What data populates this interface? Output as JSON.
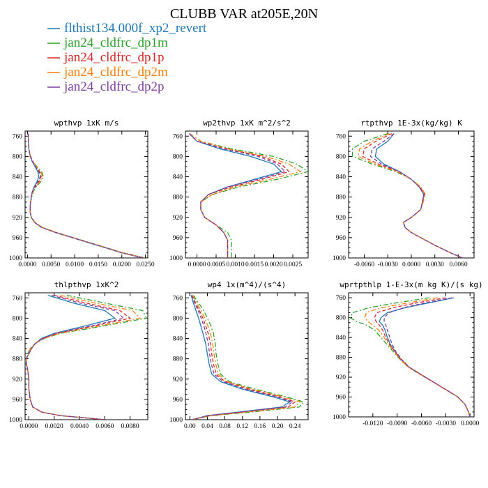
{
  "figure": {
    "title": "CLUBB VAR at205E,20N",
    "legend": [
      {
        "label": "flthist134.000f_xp2_revert",
        "color": "#1f77b4",
        "dash": "solid"
      },
      {
        "label": "jan24_cldfrc_dp1m",
        "color": "#2ca02c",
        "dash": "dashdot"
      },
      {
        "label": "jan24_cldfrc_dp1p",
        "color": "#d62728",
        "dash": "dashed"
      },
      {
        "label": "jan24_cldfrc_dp2m",
        "color": "#ff7f0e",
        "dash": "dashdot"
      },
      {
        "label": "jan24_cldfrc_dp2p",
        "color": "#7b3fa0",
        "dash": "dashed"
      }
    ]
  },
  "chart_data": [
    {
      "type": "line",
      "title": "wpthvp  1xK m/s",
      "ylim": [
        1000,
        750
      ],
      "yticks": [
        760,
        800,
        840,
        880,
        920,
        960,
        1000
      ],
      "xlim": [
        -0.0005,
        0.0255
      ],
      "xticks": [
        0.0,
        0.005,
        0.01,
        0.015,
        0.02,
        0.025
      ],
      "xticklabels": [
        "0.0000",
        "0.0050",
        "0.0100",
        "0.0150",
        "0.0200",
        "0.0250"
      ],
      "y": [
        755,
        770,
        785,
        800,
        810,
        820,
        830,
        840,
        850,
        860,
        870,
        880,
        895,
        910,
        920,
        930,
        940,
        950,
        960,
        970,
        980,
        990,
        1000
      ],
      "series": [
        {
          "values": [
            0.0002,
            0.0002,
            0.0003,
            0.0006,
            0.001,
            0.0016,
            0.0022,
            0.0024,
            0.002,
            0.0014,
            0.001,
            0.0008,
            0.0006,
            0.0006,
            0.0008,
            0.0015,
            0.003,
            0.006,
            0.0095,
            0.013,
            0.0165,
            0.02,
            0.0245
          ]
        },
        {
          "values": [
            0.0002,
            0.0002,
            0.0003,
            0.0007,
            0.0012,
            0.002,
            0.003,
            0.0034,
            0.0028,
            0.0018,
            0.0012,
            0.0009,
            0.0006,
            0.0006,
            0.0008,
            0.0016,
            0.0032,
            0.0062,
            0.0097,
            0.0133,
            0.0168,
            0.0203,
            0.025
          ]
        },
        {
          "values": [
            0.0002,
            0.0002,
            0.0003,
            0.0006,
            0.0011,
            0.0018,
            0.0026,
            0.0029,
            0.0024,
            0.0016,
            0.0011,
            0.0008,
            0.0006,
            0.0006,
            0.0008,
            0.0015,
            0.0031,
            0.0061,
            0.0096,
            0.0131,
            0.0166,
            0.0201,
            0.0247
          ]
        },
        {
          "values": [
            0.0002,
            0.0002,
            0.0003,
            0.0007,
            0.0012,
            0.0019,
            0.0028,
            0.0032,
            0.0026,
            0.0017,
            0.0011,
            0.0008,
            0.0006,
            0.0006,
            0.0008,
            0.0016,
            0.0031,
            0.0061,
            0.0096,
            0.0132,
            0.0167,
            0.0202,
            0.0248
          ]
        },
        {
          "values": [
            0.0002,
            0.0002,
            0.0003,
            0.0006,
            0.0011,
            0.0017,
            0.0024,
            0.0027,
            0.0022,
            0.0015,
            0.001,
            0.0008,
            0.0006,
            0.0006,
            0.0008,
            0.0015,
            0.003,
            0.006,
            0.0095,
            0.0131,
            0.0166,
            0.0201,
            0.0246
          ]
        }
      ]
    },
    {
      "type": "line",
      "title": "wp2thvp  1xK m^2/s^2",
      "ylim": [
        1000,
        750
      ],
      "yticks": [
        760,
        800,
        840,
        880,
        920,
        960,
        1000
      ],
      "xlim": [
        -0.0003,
        0.0029
      ],
      "xticks": [
        0.0,
        0.0005,
        0.001,
        0.0015,
        0.002,
        0.0025
      ],
      "xticklabels": [
        "0.0000",
        "0.0005",
        "0.0010",
        "0.0015",
        "0.0020",
        "0.0025"
      ],
      "y": [
        755,
        770,
        785,
        800,
        815,
        830,
        845,
        860,
        875,
        890,
        905,
        920,
        935,
        950,
        965,
        980,
        1000
      ],
      "series": [
        {
          "values": [
            -0.0002,
            0.0,
            0.0006,
            0.0014,
            0.002,
            0.0022,
            0.0015,
            0.0008,
            0.0003,
            0.0001,
            0.0001,
            0.0002,
            0.0005,
            0.0007,
            0.0008,
            0.0008,
            0.0008
          ]
        },
        {
          "values": [
            -0.0002,
            0.0001,
            0.0009,
            0.002,
            0.0026,
            0.0029,
            0.0021,
            0.0011,
            0.0004,
            0.0001,
            0.0001,
            0.0002,
            0.0005,
            0.0008,
            0.0009,
            0.0009,
            0.0009
          ]
        },
        {
          "values": [
            -0.0002,
            0.0,
            0.0008,
            0.0017,
            0.0022,
            0.0024,
            0.0017,
            0.0009,
            0.0003,
            0.0001,
            0.0001,
            0.0002,
            0.0005,
            0.0007,
            0.0008,
            0.0008,
            0.0008
          ]
        },
        {
          "values": [
            -0.0002,
            0.0001,
            0.0008,
            0.0018,
            0.0024,
            0.0027,
            0.0019,
            0.001,
            0.0004,
            0.0001,
            0.0001,
            0.0002,
            0.0005,
            0.0007,
            0.0008,
            0.0008,
            0.0008
          ]
        },
        {
          "values": [
            -0.0002,
            0.0,
            0.0007,
            0.0016,
            0.0021,
            0.0023,
            0.0016,
            0.0008,
            0.0003,
            0.0001,
            0.0001,
            0.0002,
            0.0005,
            0.0007,
            0.0008,
            0.0008,
            0.0008
          ]
        }
      ]
    },
    {
      "type": "line",
      "title": "rtpthvp  1E-3x(kg/kg) K",
      "ylim": [
        1000,
        750
      ],
      "yticks": [
        760,
        800,
        840,
        880,
        920,
        960,
        1000
      ],
      "xlim": [
        -0.008,
        0.008
      ],
      "xticks": [
        -0.006,
        -0.003,
        0.0,
        0.003,
        0.006
      ],
      "xticklabels": [
        "-0.0060",
        "-0.0030",
        "0.0000",
        "0.0030",
        "0.0060"
      ],
      "y": [
        755,
        770,
        785,
        800,
        815,
        830,
        845,
        860,
        875,
        890,
        905,
        920,
        930,
        940,
        950,
        960,
        975,
        990,
        1000
      ],
      "series": [
        {
          "values": [
            -0.0022,
            -0.003,
            -0.0044,
            -0.0046,
            -0.0035,
            -0.0015,
            0.0,
            0.001,
            0.0016,
            0.0014,
            0.0012,
            0.0,
            -0.001,
            -0.0008,
            0.0,
            0.0012,
            0.003,
            0.005,
            0.0065
          ]
        },
        {
          "values": [
            -0.003,
            -0.006,
            -0.0075,
            -0.0075,
            -0.005,
            -0.002,
            0.0,
            0.0012,
            0.0018,
            0.0015,
            0.0012,
            0.0,
            -0.001,
            -0.0008,
            0.0,
            0.0012,
            0.003,
            0.005,
            0.0065
          ]
        },
        {
          "values": [
            -0.0025,
            -0.0045,
            -0.006,
            -0.0062,
            -0.0042,
            -0.0016,
            0.0,
            0.0011,
            0.0017,
            0.0014,
            0.0012,
            0.0,
            -0.001,
            -0.0008,
            0.0,
            0.0012,
            0.003,
            0.005,
            0.0065
          ]
        },
        {
          "values": [
            -0.0028,
            -0.005,
            -0.0066,
            -0.0068,
            -0.0046,
            -0.0018,
            0.0,
            0.0012,
            0.0018,
            0.0015,
            0.0012,
            0.0,
            -0.001,
            -0.0008,
            0.0,
            0.0012,
            0.003,
            0.005,
            0.0065
          ]
        },
        {
          "values": [
            -0.0022,
            -0.0035,
            -0.005,
            -0.0052,
            -0.0038,
            -0.0015,
            0.0,
            0.001,
            0.0016,
            0.0014,
            0.0012,
            0.0,
            -0.001,
            -0.0008,
            0.0,
            0.0012,
            0.003,
            0.005,
            0.0065
          ]
        }
      ]
    },
    {
      "type": "line",
      "title": "thlpthvp  1xK^2",
      "ylim": [
        1000,
        750
      ],
      "yticks": [
        760,
        800,
        840,
        880,
        920,
        960,
        1000
      ],
      "xlim": [
        -0.0003,
        0.0094
      ],
      "xticks": [
        0.0,
        0.002,
        0.004,
        0.006,
        0.008
      ],
      "xticklabels": [
        "0.0000",
        "0.0020",
        "0.0040",
        "0.0060",
        "0.0080"
      ],
      "y": [
        755,
        770,
        785,
        800,
        815,
        830,
        840,
        850,
        860,
        870,
        880,
        890,
        900,
        920,
        940,
        960,
        975,
        985,
        992,
        1000
      ],
      "series": [
        {
          "values": [
            0.0015,
            0.0035,
            0.006,
            0.0068,
            0.0045,
            0.002,
            0.001,
            0.0005,
            0.0002,
            0.0,
            -0.0002,
            -0.0002,
            -0.0001,
            0.0,
            0.0,
            0.0001,
            0.0003,
            0.001,
            0.0025,
            0.006
          ]
        },
        {
          "values": [
            0.003,
            0.006,
            0.009,
            0.0093,
            0.006,
            0.0025,
            0.0012,
            0.0005,
            0.0001,
            -0.0001,
            -0.0002,
            -0.0002,
            -0.0001,
            0.0,
            0.0,
            0.0001,
            0.0003,
            0.001,
            0.0025,
            0.006
          ]
        },
        {
          "values": [
            0.002,
            0.0045,
            0.0072,
            0.008,
            0.0052,
            0.0022,
            0.0011,
            0.0005,
            0.0002,
            0.0,
            -0.0002,
            -0.0002,
            -0.0001,
            0.0,
            0.0,
            0.0001,
            0.0003,
            0.001,
            0.0025,
            0.006
          ]
        },
        {
          "values": [
            0.0025,
            0.0052,
            0.0082,
            0.0088,
            0.0056,
            0.0024,
            0.0012,
            0.0005,
            0.0001,
            0.0,
            -0.0002,
            -0.0002,
            -0.0001,
            0.0,
            0.0,
            0.0001,
            0.0003,
            0.001,
            0.0025,
            0.006
          ]
        },
        {
          "values": [
            0.0018,
            0.004,
            0.0068,
            0.0075,
            0.005,
            0.0021,
            0.0011,
            0.0005,
            0.0002,
            0.0,
            -0.0002,
            -0.0002,
            -0.0001,
            0.0,
            0.0,
            0.0001,
            0.0003,
            0.001,
            0.0025,
            0.006
          ]
        }
      ]
    },
    {
      "type": "line",
      "title": "wp4  1x(m^4)/(s^4)",
      "ylim": [
        1000,
        750
      ],
      "yticks": [
        760,
        800,
        840,
        880,
        920,
        960,
        1000
      ],
      "xlim": [
        -0.01,
        0.27
      ],
      "xticks": [
        0.0,
        0.04,
        0.08,
        0.12,
        0.16,
        0.2,
        0.24
      ],
      "xticklabels": [
        "0.00",
        "0.04",
        "0.08",
        "0.12",
        "0.16",
        "0.20",
        "0.24"
      ],
      "y": [
        755,
        770,
        785,
        800,
        815,
        830,
        850,
        870,
        890,
        910,
        925,
        940,
        955,
        965,
        975,
        985,
        992,
        1000
      ],
      "series": [
        {
          "values": [
            0.003,
            0.008,
            0.014,
            0.02,
            0.025,
            0.03,
            0.036,
            0.04,
            0.044,
            0.05,
            0.07,
            0.12,
            0.19,
            0.228,
            0.21,
            0.11,
            0.04,
            0.005
          ]
        },
        {
          "values": [
            0.008,
            0.02,
            0.032,
            0.04,
            0.048,
            0.054,
            0.058,
            0.06,
            0.064,
            0.07,
            0.09,
            0.15,
            0.22,
            0.26,
            0.25,
            0.14,
            0.05,
            0.005
          ]
        },
        {
          "values": [
            0.005,
            0.013,
            0.022,
            0.03,
            0.036,
            0.042,
            0.047,
            0.05,
            0.054,
            0.06,
            0.08,
            0.135,
            0.205,
            0.24,
            0.225,
            0.12,
            0.045,
            0.005
          ]
        },
        {
          "values": [
            0.006,
            0.016,
            0.026,
            0.034,
            0.041,
            0.047,
            0.052,
            0.055,
            0.059,
            0.065,
            0.085,
            0.142,
            0.212,
            0.252,
            0.24,
            0.13,
            0.048,
            0.005
          ]
        },
        {
          "values": [
            0.004,
            0.011,
            0.019,
            0.026,
            0.032,
            0.037,
            0.042,
            0.045,
            0.049,
            0.055,
            0.076,
            0.128,
            0.198,
            0.234,
            0.218,
            0.115,
            0.042,
            0.005
          ]
        }
      ]
    },
    {
      "type": "line",
      "title": "wprtpthlp  1-E-3x(m kg K)/(s kg)",
      "ylim": [
        1000,
        750
      ],
      "yticks": [
        760,
        800,
        840,
        880,
        920,
        960,
        1000
      ],
      "xlim": [
        -0.015,
        0.0005
      ],
      "xticks": [
        -0.012,
        -0.009,
        -0.006,
        -0.003,
        0.0
      ],
      "xticklabels": [
        "-0.0120",
        "-0.0090",
        "-0.0060",
        "-0.0030",
        "0.0000"
      ],
      "y": [
        760,
        770,
        780,
        790,
        800,
        808,
        815,
        825,
        840,
        855,
        870,
        885,
        900,
        915,
        930,
        945,
        960,
        975,
        990,
        1000
      ],
      "series": [
        {
          "values": [
            -0.002,
            -0.005,
            -0.008,
            -0.0102,
            -0.011,
            -0.0112,
            -0.0108,
            -0.0105,
            -0.0102,
            -0.0098,
            -0.0092,
            -0.0085,
            -0.0075,
            -0.006,
            -0.0045,
            -0.003,
            -0.0015,
            -0.0006,
            -0.0002,
            0.0
          ]
        },
        {
          "values": [
            -0.005,
            -0.009,
            -0.0125,
            -0.0145,
            -0.0148,
            -0.014,
            -0.0128,
            -0.0118,
            -0.011,
            -0.0102,
            -0.0094,
            -0.0086,
            -0.0076,
            -0.0061,
            -0.0045,
            -0.003,
            -0.0015,
            -0.0006,
            -0.0002,
            0.0
          ]
        },
        {
          "values": [
            -0.003,
            -0.0065,
            -0.0095,
            -0.0115,
            -0.0118,
            -0.0116,
            -0.0112,
            -0.0108,
            -0.0104,
            -0.0099,
            -0.0092,
            -0.0085,
            -0.0075,
            -0.006,
            -0.0045,
            -0.003,
            -0.0015,
            -0.0006,
            -0.0002,
            0.0
          ]
        },
        {
          "values": [
            -0.004,
            -0.0075,
            -0.011,
            -0.0128,
            -0.013,
            -0.0126,
            -0.012,
            -0.0113,
            -0.0106,
            -0.01,
            -0.0093,
            -0.0086,
            -0.0076,
            -0.0061,
            -0.0045,
            -0.003,
            -0.0015,
            -0.0006,
            -0.0002,
            0.0
          ]
        },
        {
          "values": [
            -0.0022,
            -0.0055,
            -0.0082,
            -0.01,
            -0.0106,
            -0.0106,
            -0.0104,
            -0.0102,
            -0.0099,
            -0.0096,
            -0.0091,
            -0.0084,
            -0.0075,
            -0.006,
            -0.0045,
            -0.003,
            -0.0015,
            -0.0006,
            -0.0002,
            0.0
          ]
        }
      ]
    }
  ]
}
